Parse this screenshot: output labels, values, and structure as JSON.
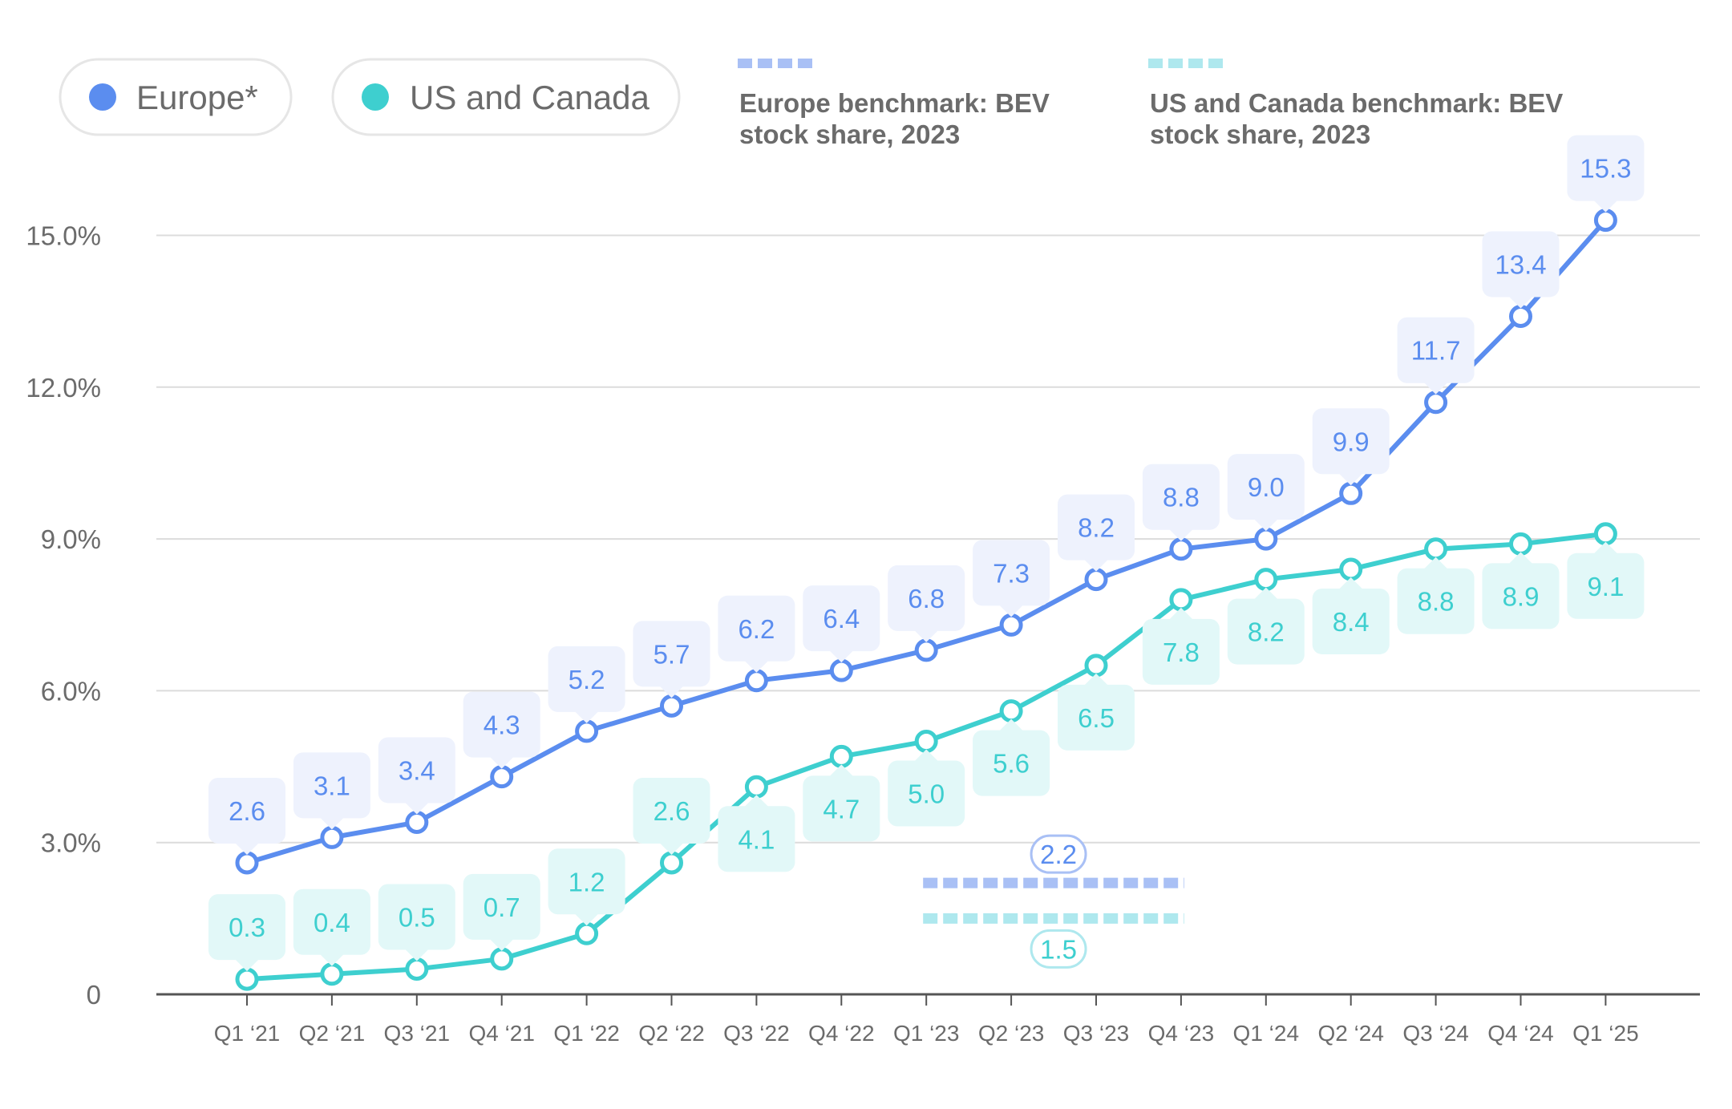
{
  "colors": {
    "europe": "#5B8DEF",
    "us_canada": "#3ECFCF",
    "europe_label_bg": "#EEF2FD",
    "us_label_bg": "#E2F8F8",
    "europe_bench": "#A9C0F5",
    "us_bench": "#AEE8EE",
    "grid": "#dcdcdc",
    "axis": "#555555",
    "text": "#6b6b6b"
  },
  "legend": {
    "europe_label": "Europe*",
    "us_label": "US and Canada",
    "europe_bench_lines": [
      "Europe benchmark: BEV",
      "stock share, 2023"
    ],
    "us_bench_lines": [
      "US and Canada benchmark: BEV",
      "stock share, 2023"
    ]
  },
  "chart_data": {
    "type": "line",
    "categories": [
      "Q1 ‘21",
      "Q2 ‘21",
      "Q3 ‘21",
      "Q4 ‘21",
      "Q1 ‘22",
      "Q2 ‘22",
      "Q3 ‘22",
      "Q4 ‘22",
      "Q1 ‘23",
      "Q2 ‘23",
      "Q3 ‘23",
      "Q4 ‘23",
      "Q1 ‘24",
      "Q2 ‘24",
      "Q3 ‘24",
      "Q4 ‘24",
      "Q1 ‘25"
    ],
    "series": [
      {
        "name": "Europe*",
        "values": [
          2.6,
          3.1,
          3.4,
          4.3,
          5.2,
          5.7,
          6.2,
          6.4,
          6.8,
          7.3,
          8.2,
          8.8,
          9.0,
          9.9,
          11.7,
          13.4,
          15.3
        ],
        "labels": [
          "2.6",
          "3.1",
          "3.4",
          "4.3",
          "5.2",
          "5.7",
          "6.2",
          "6.4",
          "6.8",
          "7.3",
          "8.2",
          "8.8",
          "9.0",
          "9.9",
          "11.7",
          "13.4",
          "15.3"
        ]
      },
      {
        "name": "US and Canada",
        "values": [
          0.3,
          0.4,
          0.5,
          0.7,
          1.2,
          2.6,
          4.1,
          4.7,
          5.0,
          5.6,
          6.5,
          7.8,
          8.2,
          8.4,
          8.8,
          8.9,
          9.1
        ],
        "labels": [
          "0.3",
          "0.4",
          "0.5",
          "0.7",
          "1.2",
          "2.6",
          "4.1",
          "4.7",
          "5.0",
          "5.6",
          "6.5",
          "7.8",
          "8.2",
          "8.4",
          "8.8",
          "8.9",
          "9.1"
        ]
      }
    ],
    "label_positions": {
      "europe": [
        "above",
        "above",
        "above",
        "above",
        "above",
        "above",
        "above",
        "above",
        "above",
        "above",
        "above",
        "above",
        "above",
        "above",
        "above",
        "above",
        "above"
      ],
      "us_canada": [
        "above",
        "above",
        "above",
        "above",
        "above",
        "above",
        "below",
        "below",
        "below",
        "below",
        "below",
        "below",
        "below",
        "below",
        "below",
        "below",
        "below"
      ]
    },
    "benchmarks": [
      {
        "name": "Europe benchmark: BEV stock share, 2023",
        "value": 2.2,
        "label": "2.2",
        "x_range": [
          "Q1 ‘23",
          "Q4 ‘23"
        ]
      },
      {
        "name": "US and Canada benchmark: BEV stock share, 2023",
        "value": 1.5,
        "label": "1.5",
        "x_range": [
          "Q1 ‘23",
          "Q4 ‘23"
        ]
      }
    ],
    "y_ticks": [
      0,
      3,
      6,
      9,
      12,
      15
    ],
    "y_tick_labels": [
      "0",
      "3.0%",
      "6.0%",
      "9.0%",
      "12.0%",
      "15.0%"
    ],
    "ylim": [
      0,
      15.5
    ],
    "grid": true,
    "legend_position": "top"
  }
}
